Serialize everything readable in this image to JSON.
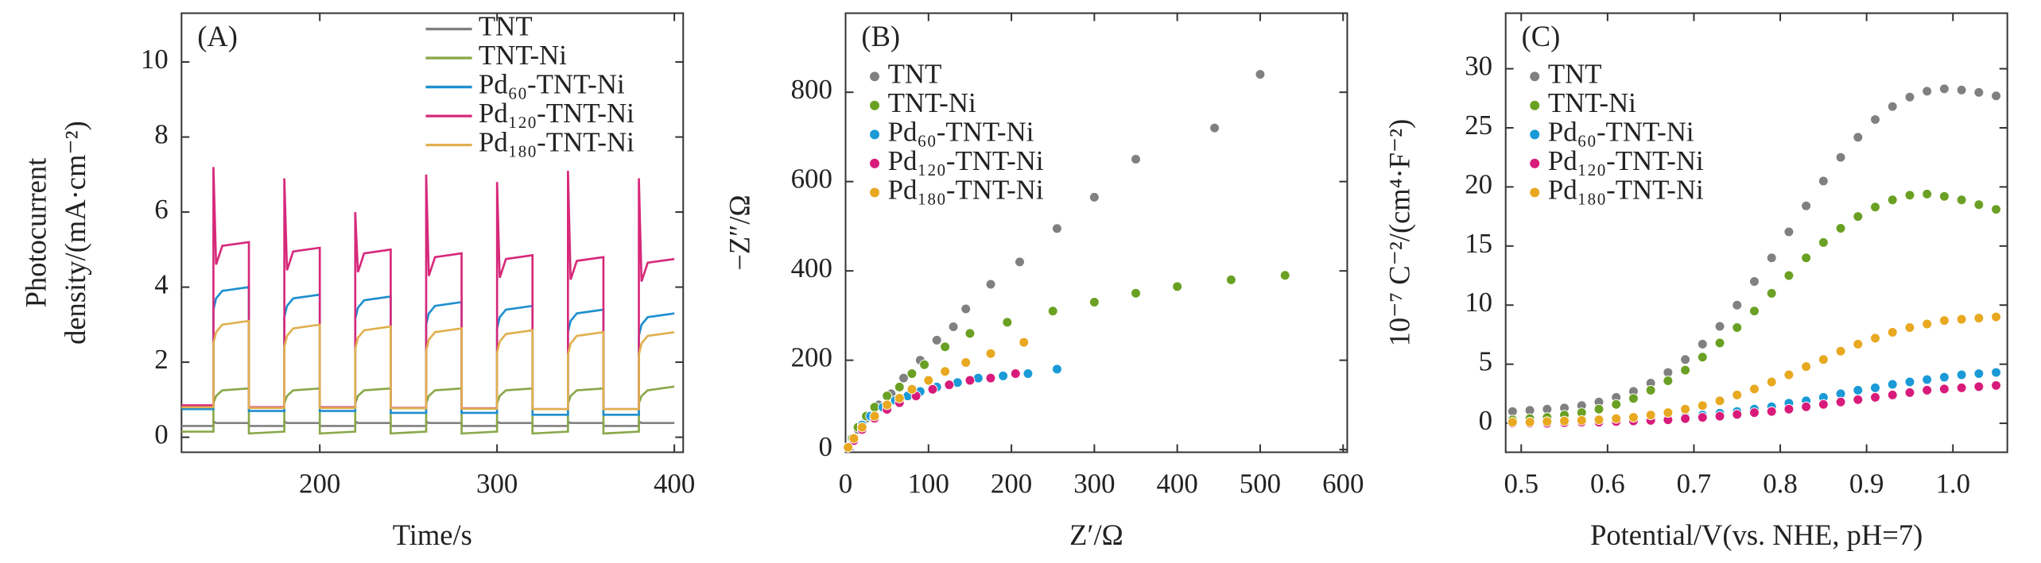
{
  "chart_data": [
    {
      "type": "line",
      "panel_label": "(A)",
      "xlabel": "Time/s",
      "ylabel": [
        "Photocurrent",
        "density/(mA·cm⁻²)"
      ],
      "xlim": [
        122,
        405
      ],
      "xticks": [
        200,
        300,
        400
      ],
      "ylim": [
        -0.4,
        11.3
      ],
      "yticks": [
        0,
        2,
        4,
        6,
        8,
        10
      ],
      "legend": "upper right",
      "x": [
        122,
        140,
        140,
        141.5,
        145,
        160,
        160,
        180,
        180,
        181.5,
        185,
        200,
        200,
        220,
        220,
        221.5,
        225,
        240,
        240,
        260,
        260,
        261.5,
        265,
        280,
        280,
        300,
        300,
        301.5,
        305,
        320,
        320,
        340,
        340,
        341.5,
        345,
        360,
        360,
        380,
        380,
        381.5,
        385,
        400
      ],
      "series": [
        {
          "name": "TNT",
          "color": "#808080",
          "values": [
            0.3,
            0.3,
            0.42,
            0.38,
            0.38,
            0.38,
            0.3,
            0.3,
            0.42,
            0.38,
            0.38,
            0.38,
            0.3,
            0.3,
            0.42,
            0.38,
            0.38,
            0.38,
            0.3,
            0.3,
            0.42,
            0.38,
            0.38,
            0.38,
            0.3,
            0.3,
            0.42,
            0.38,
            0.38,
            0.38,
            0.3,
            0.3,
            0.42,
            0.38,
            0.38,
            0.38,
            0.3,
            0.3,
            0.42,
            0.38,
            0.38,
            0.38
          ]
        },
        {
          "name": "TNT-Ni",
          "color": "#8aa84a",
          "values": [
            0.15,
            0.15,
            0.9,
            1.1,
            1.25,
            1.3,
            0.1,
            0.15,
            0.9,
            1.1,
            1.25,
            1.3,
            0.1,
            0.15,
            0.9,
            1.1,
            1.25,
            1.3,
            0.1,
            0.15,
            0.9,
            1.1,
            1.25,
            1.3,
            0.1,
            0.15,
            0.9,
            1.1,
            1.25,
            1.3,
            0.1,
            0.15,
            0.9,
            1.1,
            1.25,
            1.3,
            0.1,
            0.15,
            0.9,
            1.1,
            1.25,
            1.35
          ]
        },
        {
          "name": "Pd₆₀-TNT-Ni",
          "color": "#1e8fcf",
          "values": [
            0.75,
            0.75,
            3.4,
            3.7,
            3.9,
            4.0,
            0.7,
            0.7,
            3.2,
            3.5,
            3.7,
            3.8,
            0.7,
            0.7,
            3.15,
            3.45,
            3.65,
            3.75,
            0.65,
            0.65,
            3.0,
            3.3,
            3.5,
            3.6,
            0.65,
            0.65,
            2.9,
            3.2,
            3.4,
            3.5,
            0.6,
            0.6,
            2.8,
            3.1,
            3.3,
            3.4,
            0.6,
            0.6,
            2.7,
            3.0,
            3.2,
            3.3
          ]
        },
        {
          "name": "Pd₁₂₀-TNT-Ni",
          "color": "#d6297a",
          "values": [
            0.85,
            0.85,
            7.2,
            4.6,
            5.1,
            5.2,
            0.8,
            0.8,
            6.9,
            4.45,
            4.95,
            5.05,
            0.8,
            0.8,
            6.0,
            4.4,
            4.9,
            5.0,
            0.78,
            0.78,
            7.0,
            4.3,
            4.8,
            4.9,
            0.77,
            0.77,
            6.8,
            4.25,
            4.75,
            4.85,
            0.75,
            0.75,
            7.1,
            4.2,
            4.7,
            4.8,
            0.75,
            0.75,
            6.9,
            4.15,
            4.65,
            4.75
          ]
        },
        {
          "name": "Pd₁₈₀-TNT-Ni",
          "color": "#e0b050",
          "values": [
            0.8,
            0.8,
            2.5,
            2.8,
            3.0,
            3.1,
            0.78,
            0.78,
            2.4,
            2.7,
            2.9,
            3.0,
            0.78,
            0.78,
            2.35,
            2.65,
            2.85,
            2.95,
            0.77,
            0.77,
            2.3,
            2.6,
            2.8,
            2.9,
            0.76,
            0.76,
            2.25,
            2.55,
            2.75,
            2.85,
            0.75,
            0.75,
            2.2,
            2.5,
            2.7,
            2.8,
            0.75,
            0.75,
            2.2,
            2.5,
            2.7,
            2.8
          ]
        }
      ]
    },
    {
      "type": "scatter",
      "panel_label": "(B)",
      "xlabel": "Z′/Ω",
      "ylabel": [
        "−Z″/Ω"
      ],
      "xlim": [
        0,
        605
      ],
      "xticks": [
        0,
        100,
        200,
        300,
        400,
        500,
        600
      ],
      "ylim": [
        -6,
        977
      ],
      "yticks": [
        0,
        200,
        400,
        600,
        800
      ],
      "legend": "upper left",
      "series": [
        {
          "name": "TNT",
          "color": "#808080",
          "x": [
            3,
            8,
            15,
            25,
            40,
            55,
            70,
            90,
            110,
            130,
            145,
            175,
            210,
            255,
            300,
            350,
            445,
            500
          ],
          "values": [
            5,
            20,
            45,
            70,
            100,
            125,
            160,
            200,
            245,
            275,
            315,
            370,
            420,
            495,
            565,
            650,
            720,
            840
          ]
        },
        {
          "name": "TNT-Ni",
          "color": "#6aa023",
          "x": [
            3,
            8,
            15,
            25,
            35,
            50,
            65,
            80,
            95,
            120,
            150,
            195,
            250,
            300,
            350,
            400,
            465,
            530
          ],
          "values": [
            5,
            25,
            50,
            75,
            95,
            120,
            140,
            170,
            190,
            230,
            260,
            285,
            310,
            330,
            350,
            365,
            380,
            390
          ]
        },
        {
          "name": "Pd₆₀-TNT-Ni",
          "color": "#1a9ad6",
          "x": [
            3,
            10,
            20,
            30,
            45,
            60,
            75,
            90,
            110,
            135,
            160,
            190,
            220,
            255
          ],
          "values": [
            5,
            25,
            55,
            75,
            95,
            110,
            120,
            130,
            140,
            150,
            160,
            165,
            170,
            180
          ]
        },
        {
          "name": "Pd₁₂₀-TNT-Ni",
          "color": "#d81b7a",
          "x": [
            3,
            10,
            20,
            35,
            50,
            65,
            85,
            105,
            125,
            150,
            175,
            205
          ],
          "values": [
            5,
            20,
            45,
            70,
            90,
            105,
            120,
            135,
            145,
            155,
            160,
            170
          ]
        },
        {
          "name": "Pd₁₈₀-TNT-Ni",
          "color": "#e8a820",
          "x": [
            3,
            10,
            20,
            35,
            50,
            65,
            80,
            100,
            120,
            145,
            175,
            215
          ],
          "values": [
            5,
            25,
            50,
            75,
            100,
            115,
            135,
            155,
            175,
            195,
            215,
            240
          ]
        }
      ]
    },
    {
      "type": "scatter",
      "panel_label": "(C)",
      "xlabel": "Potential/V(vs. NHE, pH=7)",
      "ylabel": [
        "10⁻⁷ C⁻²/(cm⁴·F⁻²)"
      ],
      "xlim": [
        0.482,
        1.063
      ],
      "xticks": [
        0.5,
        0.6,
        0.7,
        0.8,
        0.9,
        {
          "value": 1,
          "label": "1.0"
        }
      ],
      "ylim": [
        -2.45,
        34.7
      ],
      "yticks": [
        0,
        5,
        10,
        15,
        20,
        25,
        30
      ],
      "legend": "upper left",
      "x": [
        0.49,
        0.51,
        0.53,
        0.55,
        0.57,
        0.59,
        0.61,
        0.63,
        0.65,
        0.67,
        0.69,
        0.71,
        0.73,
        0.75,
        0.77,
        0.79,
        0.81,
        0.83,
        0.85,
        0.87,
        0.89,
        0.91,
        0.93,
        0.95,
        0.97,
        0.99,
        1.01,
        1.03,
        1.05
      ],
      "series": [
        {
          "name": "TNT",
          "color": "#808080",
          "values": [
            1.0,
            1.1,
            1.2,
            1.3,
            1.5,
            1.8,
            2.2,
            2.7,
            3.4,
            4.3,
            5.4,
            6.7,
            8.2,
            10.0,
            12.0,
            14.0,
            16.2,
            18.4,
            20.5,
            22.5,
            24.2,
            25.7,
            26.8,
            27.6,
            28.1,
            28.3,
            28.2,
            28.0,
            27.7
          ]
        },
        {
          "name": "TNT-Ni",
          "color": "#6aa023",
          "values": [
            0.3,
            0.4,
            0.5,
            0.7,
            0.9,
            1.2,
            1.6,
            2.1,
            2.8,
            3.6,
            4.5,
            5.6,
            6.8,
            8.1,
            9.5,
            11.0,
            12.5,
            14.0,
            15.3,
            16.5,
            17.5,
            18.3,
            18.9,
            19.3,
            19.4,
            19.2,
            18.9,
            18.5,
            18.1
          ]
        },
        {
          "name": "Pd₆₀-TNT-Ni",
          "color": "#1a9ad6",
          "values": [
            0,
            0,
            0.05,
            0.1,
            0.1,
            0.15,
            0.2,
            0.3,
            0.35,
            0.45,
            0.55,
            0.7,
            0.85,
            1.0,
            1.2,
            1.4,
            1.7,
            1.9,
            2.2,
            2.5,
            2.8,
            3.0,
            3.3,
            3.5,
            3.7,
            3.9,
            4.1,
            4.2,
            4.3
          ]
        },
        {
          "name": "Pd₁₂₀-TNT-Ni",
          "color": "#d81b7a",
          "values": [
            0,
            0,
            0,
            0.05,
            0.1,
            0.1,
            0.15,
            0.2,
            0.25,
            0.3,
            0.4,
            0.5,
            0.6,
            0.75,
            0.9,
            1.0,
            1.2,
            1.4,
            1.6,
            1.8,
            2.0,
            2.2,
            2.4,
            2.6,
            2.8,
            2.9,
            3.0,
            3.1,
            3.2
          ]
        },
        {
          "name": "Pd₁₈₀-TNT-Ni",
          "color": "#e8a820",
          "values": [
            0.1,
            0.1,
            0.15,
            0.2,
            0.25,
            0.3,
            0.4,
            0.5,
            0.7,
            0.9,
            1.2,
            1.5,
            1.9,
            2.4,
            2.9,
            3.5,
            4.1,
            4.8,
            5.4,
            6.1,
            6.7,
            7.2,
            7.7,
            8.1,
            8.4,
            8.7,
            8.8,
            8.9,
            9.0
          ]
        }
      ]
    }
  ]
}
